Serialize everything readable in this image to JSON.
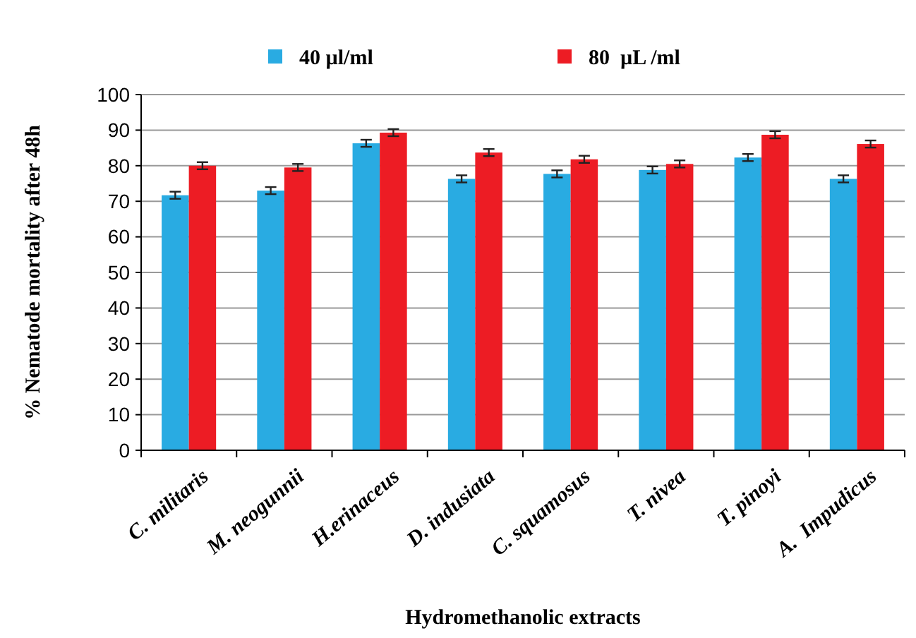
{
  "chart_data": {
    "type": "bar",
    "xlabel": "Hydromethanolic extracts",
    "ylabel": "% Nematode mortality after 48h",
    "categories": [
      "C. militaris",
      "M. neogunnii",
      "H.erinaceus",
      "D. indusiata",
      "C. squamosus",
      "T. nivea",
      "T. pinoyi",
      "A.  Impudicus"
    ],
    "series": [
      {
        "name": "40 µl/ml",
        "color": "#29abe2",
        "values": [
          71.7,
          73,
          86.3,
          76.3,
          77.7,
          78.8,
          82.3,
          76.3
        ],
        "errors": [
          1,
          1,
          1,
          1,
          1,
          1,
          1,
          1
        ]
      },
      {
        "name": "80  µL /ml",
        "color": "#ed1c24",
        "values": [
          80,
          79.5,
          89.3,
          83.7,
          81.8,
          80.5,
          88.7,
          86.1
        ],
        "errors": [
          1,
          1,
          1,
          1,
          1,
          1,
          1,
          1
        ]
      }
    ],
    "ylim": [
      0,
      100
    ],
    "yticks": [
      0,
      10,
      20,
      30,
      40,
      50,
      60,
      70,
      80,
      90,
      100
    ],
    "grid": "y",
    "legend": "top"
  }
}
